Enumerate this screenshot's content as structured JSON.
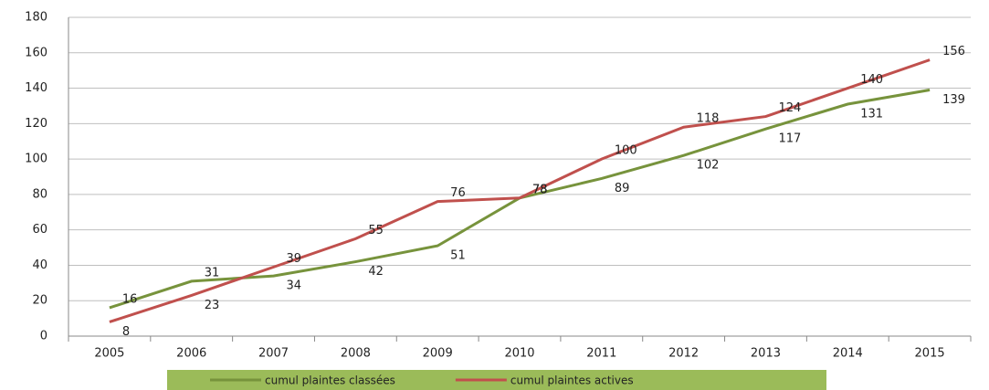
{
  "chart_data": {
    "type": "line",
    "categories": [
      "2005",
      "2006",
      "2007",
      "2008",
      "2009",
      "2010",
      "2011",
      "2012",
      "2013",
      "2014",
      "2015"
    ],
    "series": [
      {
        "name": "cumul plaintes classées",
        "color": "#77933c",
        "values": [
          16,
          31,
          34,
          42,
          51,
          78,
          89,
          102,
          117,
          131,
          139
        ]
      },
      {
        "name": "cumul plaintes actives",
        "color": "#c0504d",
        "values": [
          8,
          23,
          39,
          55,
          76,
          78,
          100,
          118,
          124,
          140,
          156
        ]
      }
    ],
    "ylim": [
      0,
      180
    ],
    "yticks": [
      0,
      20,
      40,
      60,
      80,
      100,
      120,
      140,
      160,
      180
    ],
    "grid": true,
    "legend": "bottom",
    "data_labels": true
  }
}
